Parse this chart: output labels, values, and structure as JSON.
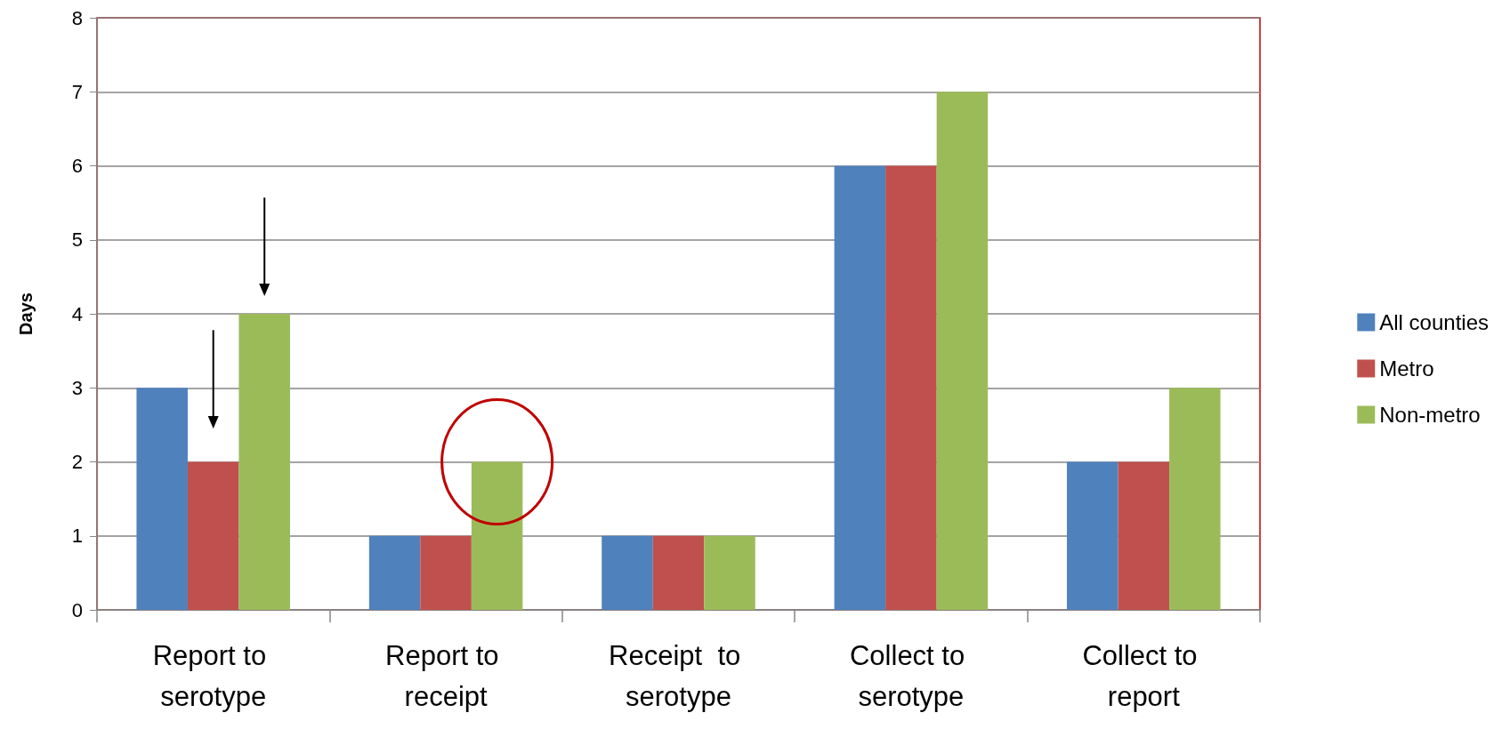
{
  "chart_data": {
    "type": "bar",
    "ylabel": "Days",
    "categories": [
      "Report to serotype",
      "Report to receipt",
      "Receipt  to serotype",
      "Collect to serotype",
      "Collect to report"
    ],
    "series": [
      {
        "name": "All counties",
        "color": "#4f81bd",
        "values": [
          3,
          1,
          1,
          6,
          2
        ]
      },
      {
        "name": "Metro",
        "color": "#c0504d",
        "values": [
          2,
          1,
          1,
          6,
          2
        ]
      },
      {
        "name": "Non-metro",
        "color": "#9bbb59",
        "values": [
          4,
          2,
          1,
          7,
          3
        ]
      }
    ],
    "ylim": [
      0,
      8
    ],
    "yticks": [
      0,
      1,
      2,
      3,
      4,
      5,
      6,
      7,
      8
    ],
    "grid": "y",
    "legend": "right"
  }
}
